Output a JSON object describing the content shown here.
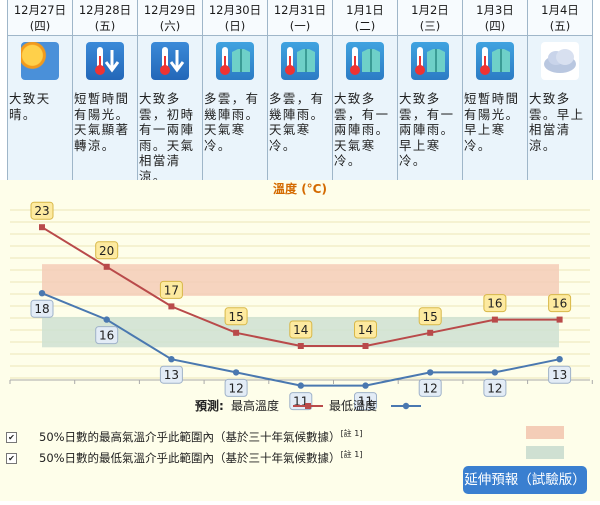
{
  "forecast": [
    {
      "date": "12月27日",
      "dow": "(四)",
      "icon": "sunny-interval-icon",
      "desc": "大致天晴。"
    },
    {
      "date": "12月28日",
      "dow": "(五)",
      "icon": "cold-icon",
      "desc": "短暫時間有陽光。天氣顯著轉涼。"
    },
    {
      "date": "12月29日",
      "dow": "(六)",
      "icon": "cold-icon",
      "desc": "大致多雲，初時有一兩陣雨。天氣相當清涼。"
    },
    {
      "date": "12月30日",
      "dow": "(日)",
      "icon": "cold-jacket-icon",
      "desc": "多雲，有幾陣雨。天氣寒冷。"
    },
    {
      "date": "12月31日",
      "dow": "(一)",
      "icon": "cold-jacket-icon",
      "desc": "多雲，有幾陣雨。天氣寒冷。"
    },
    {
      "date": "1月1日",
      "dow": "(二)",
      "icon": "cold-jacket-icon",
      "desc": "大致多雲，有一兩陣雨。天氣寒冷。"
    },
    {
      "date": "1月2日",
      "dow": "(三)",
      "icon": "cold-jacket-icon",
      "desc": "大致多雲，有一兩陣雨。早上寒冷。"
    },
    {
      "date": "1月3日",
      "dow": "(四)",
      "icon": "cold-jacket-icon",
      "desc": "短暫時間有陽光。早上寒冷。"
    },
    {
      "date": "1月4日",
      "dow": "(五)",
      "icon": "cloudy-icon",
      "desc": "大致多雲。早上相當清涼。"
    }
  ],
  "chart_title": "溫度 (°C)",
  "chart_data": {
    "type": "line",
    "categories": [
      "12月27日",
      "12月28日",
      "12月29日",
      "12月30日",
      "12月31日",
      "1月1日",
      "1月2日",
      "1月3日",
      "1月4日"
    ],
    "series": [
      {
        "name": "最高溫度",
        "values": [
          23,
          20,
          17,
          15,
          14,
          14,
          15,
          16,
          16
        ],
        "color": "#b94a4a"
      },
      {
        "name": "最低溫度",
        "values": [
          18,
          16,
          13,
          12,
          11,
          11,
          12,
          12,
          13
        ],
        "color": "#4a78b0"
      }
    ]
  },
  "legend": {
    "prefix": "預測:",
    "max_label": "最高溫度",
    "min_label": "最低溫度"
  },
  "footnotes": [
    {
      "text": "50%日數的最高氣溫介乎此範圍內（基於三十年氣候數據）",
      "note": "[註 1]",
      "checked": "✔",
      "color": "#f4cdb7"
    },
    {
      "text": "50%日數的最低氣溫介乎此範圍內（基於三十年氣候數據）",
      "note": "[註 1]",
      "checked": "✔",
      "color": "#cfe0d2"
    }
  ],
  "button_label": "延伸預報（試驗版）"
}
